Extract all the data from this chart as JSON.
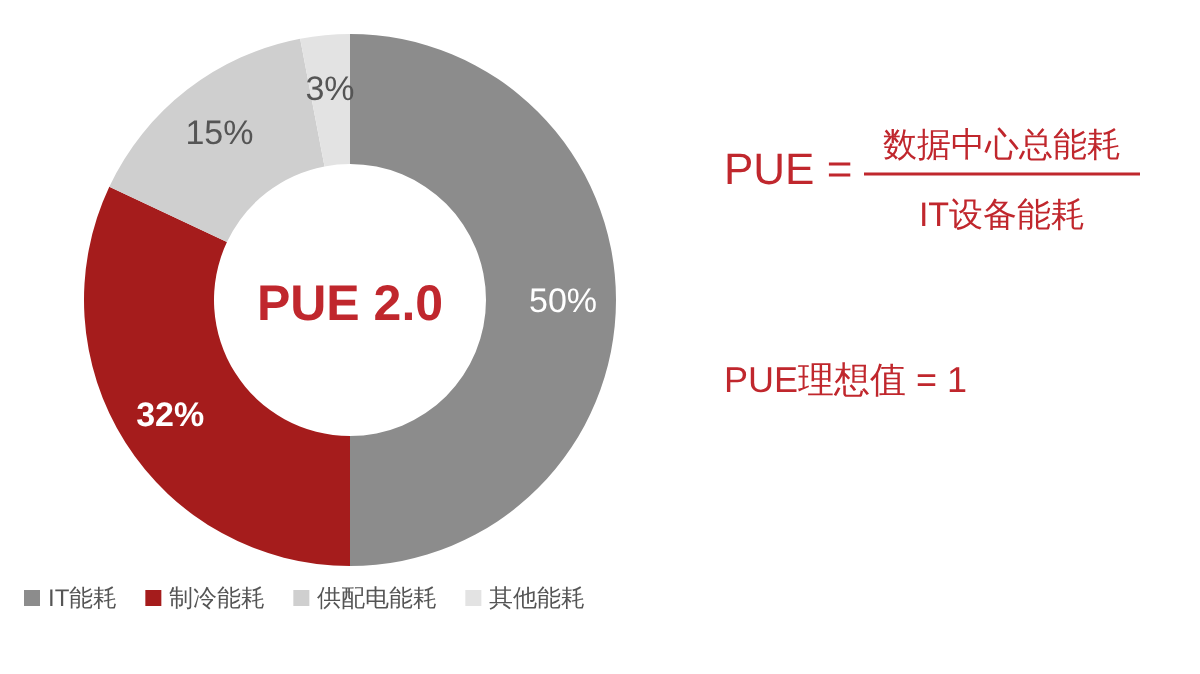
{
  "chart_data": {
    "type": "donut",
    "categories": [
      "IT能耗",
      "制冷能耗",
      "供配电能耗",
      "其他能耗"
    ],
    "values": [
      50,
      32,
      15,
      3
    ],
    "colors": [
      "#8c8c8c",
      "#a51c1c",
      "#cfcfcf",
      "#e3e3e3"
    ],
    "value_labels": [
      "50%",
      "32%",
      "15%",
      "3%"
    ],
    "legend": "bottom left",
    "annotations": [
      "PUE 2.0",
      "PUE =",
      "数据中心总能耗",
      "IT设备能耗",
      "PUE理想值 = 1"
    ]
  }
}
